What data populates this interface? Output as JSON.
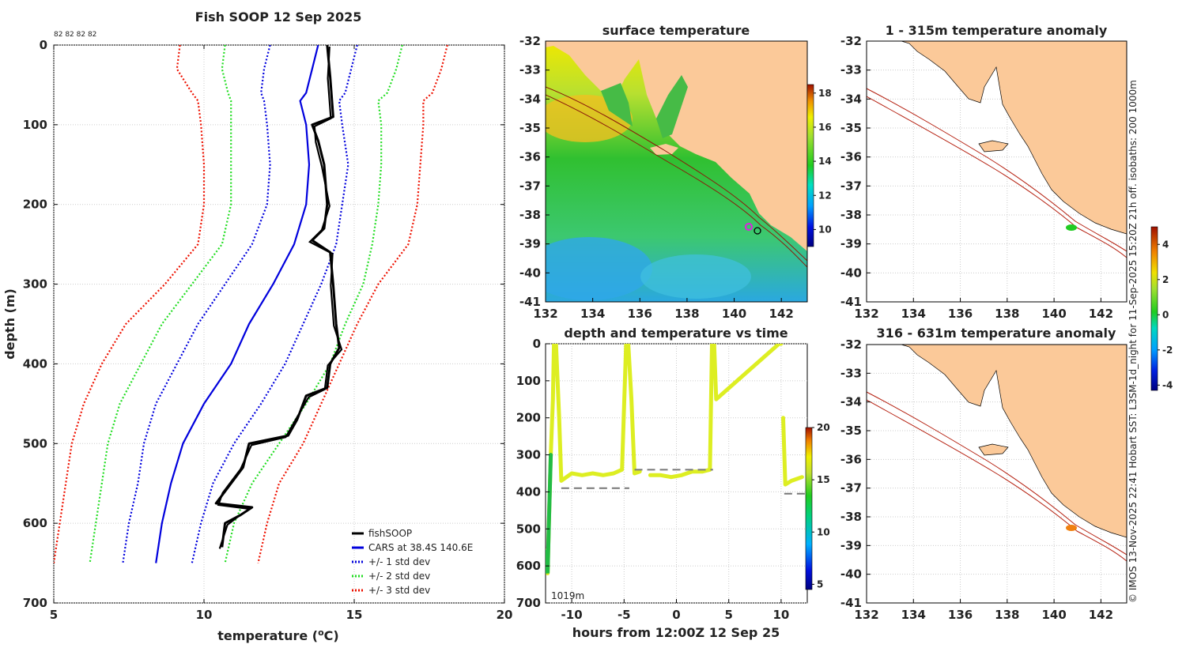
{
  "figure": {
    "credit": "© IMOS 13-Nov-2025 22:41 Hobart SST: L3SM-1d_night for 11-Sep-2025 15:20Z 21h off. isobaths: 200  1000m"
  },
  "profile": {
    "title": "Fish SOOP 12 Sep 2025",
    "counts_label": "82 82 82 82",
    "xlabel_main": "temperature (",
    "xlabel_sup": "o",
    "xlabel_tail": "C)",
    "ylabel": "depth (m)",
    "xticks": [
      5,
      10,
      15,
      20
    ],
    "yticks": [
      0,
      100,
      200,
      300,
      400,
      500,
      600,
      700
    ],
    "legend": [
      {
        "label": "fishSOOP",
        "color": "#000000",
        "style": "solid"
      },
      {
        "label": "CARS at 38.4S 140.6E",
        "color": "#0000dd",
        "style": "solid"
      },
      {
        "label": "+/- 1 std dev",
        "color": "#0000dd",
        "style": "dotted"
      },
      {
        "label": "+/- 2 std dev",
        "color": "#22dd22",
        "style": "dotted"
      },
      {
        "label": "+/- 3 std dev",
        "color": "#ee1100",
        "style": "dotted"
      }
    ]
  },
  "chart_data": [
    {
      "type": "line",
      "title": "Fish SOOP 12 Sep 2025",
      "xlabel": "temperature (oC)",
      "ylabel": "depth (m)",
      "xlim": [
        5,
        20
      ],
      "ylim": [
        700,
        0
      ],
      "series": [
        {
          "name": "CARS at 38.4S 140.6E",
          "color": "#0000dd",
          "style": "solid",
          "points": [
            [
              13.8,
              0
            ],
            [
              13.6,
              30
            ],
            [
              13.4,
              60
            ],
            [
              13.2,
              70
            ],
            [
              13.4,
              100
            ],
            [
              13.5,
              150
            ],
            [
              13.4,
              200
            ],
            [
              13.0,
              250
            ],
            [
              12.3,
              300
            ],
            [
              11.5,
              350
            ],
            [
              10.9,
              400
            ],
            [
              10.0,
              450
            ],
            [
              9.3,
              500
            ],
            [
              8.9,
              550
            ],
            [
              8.6,
              600
            ],
            [
              8.4,
              650
            ]
          ]
        },
        {
          "name": "-1 std dev",
          "color": "#0000dd",
          "style": "dotted",
          "points": [
            [
              12.2,
              0
            ],
            [
              12.0,
              30
            ],
            [
              11.9,
              60
            ],
            [
              12.0,
              70
            ],
            [
              12.1,
              100
            ],
            [
              12.2,
              150
            ],
            [
              12.1,
              200
            ],
            [
              11.6,
              250
            ],
            [
              10.7,
              300
            ],
            [
              9.8,
              350
            ],
            [
              9.1,
              400
            ],
            [
              8.4,
              450
            ],
            [
              8.0,
              500
            ],
            [
              7.8,
              550
            ],
            [
              7.5,
              600
            ],
            [
              7.3,
              650
            ]
          ]
        },
        {
          "name": "+1 std dev",
          "color": "#0000dd",
          "style": "dotted",
          "points": [
            [
              15.1,
              0
            ],
            [
              14.9,
              30
            ],
            [
              14.7,
              60
            ],
            [
              14.5,
              70
            ],
            [
              14.6,
              100
            ],
            [
              14.8,
              150
            ],
            [
              14.6,
              200
            ],
            [
              14.4,
              250
            ],
            [
              13.9,
              300
            ],
            [
              13.3,
              350
            ],
            [
              12.7,
              400
            ],
            [
              11.9,
              450
            ],
            [
              11.0,
              500
            ],
            [
              10.3,
              550
            ],
            [
              9.9,
              600
            ],
            [
              9.6,
              650
            ]
          ]
        },
        {
          "name": "-2 std dev",
          "color": "#22dd22",
          "style": "dotted",
          "points": [
            [
              10.7,
              0
            ],
            [
              10.6,
              30
            ],
            [
              10.8,
              60
            ],
            [
              10.9,
              70
            ],
            [
              10.9,
              100
            ],
            [
              10.9,
              150
            ],
            [
              10.9,
              200
            ],
            [
              10.6,
              250
            ],
            [
              9.6,
              300
            ],
            [
              8.6,
              350
            ],
            [
              7.9,
              400
            ],
            [
              7.2,
              450
            ],
            [
              6.8,
              500
            ],
            [
              6.6,
              550
            ],
            [
              6.4,
              600
            ],
            [
              6.2,
              650
            ]
          ]
        },
        {
          "name": "+2 std dev",
          "color": "#22dd22",
          "style": "dotted",
          "points": [
            [
              16.6,
              0
            ],
            [
              16.4,
              30
            ],
            [
              16.1,
              60
            ],
            [
              15.8,
              70
            ],
            [
              15.9,
              100
            ],
            [
              15.9,
              150
            ],
            [
              15.8,
              200
            ],
            [
              15.6,
              250
            ],
            [
              15.3,
              300
            ],
            [
              14.7,
              350
            ],
            [
              14.2,
              400
            ],
            [
              13.4,
              450
            ],
            [
              12.5,
              500
            ],
            [
              11.6,
              550
            ],
            [
              11.0,
              600
            ],
            [
              10.7,
              650
            ]
          ]
        },
        {
          "name": "-3 std dev",
          "color": "#ee1100",
          "style": "dotted",
          "points": [
            [
              9.2,
              0
            ],
            [
              9.1,
              30
            ],
            [
              9.6,
              60
            ],
            [
              9.8,
              70
            ],
            [
              9.9,
              100
            ],
            [
              10.0,
              150
            ],
            [
              10.0,
              200
            ],
            [
              9.8,
              250
            ],
            [
              8.7,
              300
            ],
            [
              7.4,
              350
            ],
            [
              6.6,
              400
            ],
            [
              6.0,
              450
            ],
            [
              5.6,
              500
            ],
            [
              5.4,
              550
            ],
            [
              5.2,
              600
            ],
            [
              5.0,
              650
            ]
          ]
        },
        {
          "name": "+3 std dev",
          "color": "#ee1100",
          "style": "dotted",
          "points": [
            [
              18.1,
              0
            ],
            [
              17.9,
              30
            ],
            [
              17.6,
              60
            ],
            [
              17.3,
              70
            ],
            [
              17.3,
              100
            ],
            [
              17.2,
              150
            ],
            [
              17.1,
              200
            ],
            [
              16.8,
              250
            ],
            [
              15.8,
              300
            ],
            [
              15.1,
              350
            ],
            [
              14.5,
              400
            ],
            [
              13.9,
              450
            ],
            [
              13.3,
              500
            ],
            [
              12.5,
              550
            ],
            [
              12.1,
              600
            ],
            [
              11.8,
              650
            ]
          ]
        },
        {
          "name": "fishSOOP",
          "color": "#000000",
          "style": "solid",
          "points": [
            [
              14.1,
              0
            ],
            [
              14.2,
              40
            ],
            [
              14.3,
              90
            ],
            [
              13.6,
              100
            ],
            [
              13.8,
              120
            ],
            [
              14.0,
              150
            ],
            [
              14.1,
              200
            ],
            [
              14.0,
              230
            ],
            [
              13.6,
              245
            ],
            [
              14.2,
              260
            ],
            [
              14.3,
              300
            ],
            [
              14.4,
              350
            ],
            [
              14.5,
              380
            ],
            [
              14.2,
              400
            ],
            [
              14.1,
              430
            ],
            [
              13.4,
              440
            ],
            [
              13.1,
              470
            ],
            [
              12.8,
              490
            ],
            [
              11.5,
              500
            ],
            [
              11.3,
              530
            ],
            [
              10.7,
              560
            ],
            [
              10.4,
              575
            ],
            [
              11.6,
              580
            ],
            [
              11.2,
              590
            ],
            [
              10.7,
              600
            ],
            [
              10.6,
              630
            ]
          ]
        }
      ]
    },
    {
      "type": "heatmap",
      "title": "surface temperature",
      "xticks": [
        132,
        134,
        136,
        138,
        140,
        142
      ],
      "yticks": [
        -32,
        -33,
        -34,
        -35,
        -36,
        -37,
        -38,
        -39,
        -40,
        -41
      ],
      "colorbar_ticks": [
        10,
        12,
        14,
        16,
        18
      ],
      "clim": [
        9,
        18.5
      ]
    },
    {
      "type": "line",
      "title": "depth and temperature vs time",
      "xlabel": "hours from 12:00Z 12 Sep 25",
      "annotation": "1019m",
      "xticks": [
        -10,
        -5,
        0,
        5,
        10
      ],
      "yticks": [
        0,
        100,
        200,
        300,
        400,
        500,
        600,
        700
      ],
      "xlim": [
        -12.5,
        12.5
      ],
      "ylim": [
        700,
        0
      ],
      "colorbar_ticks": [
        5,
        10,
        15,
        20
      ],
      "clim": [
        4.5,
        20
      ],
      "series": [
        {
          "name": "depth",
          "color": "#ddee22",
          "points": [
            [
              -12.9,
              540
            ],
            [
              -12.6,
              560
            ],
            [
              -12.3,
              620
            ],
            [
              -12.2,
              500
            ],
            [
              -12.0,
              300
            ],
            [
              -11.8,
              150
            ],
            [
              -11.7,
              0
            ],
            [
              -11.5,
              0
            ],
            [
              -11.2,
              200
            ],
            [
              -11.0,
              370
            ],
            [
              -10.5,
              360
            ],
            [
              -10.0,
              350
            ],
            [
              -9.0,
              355
            ],
            [
              -8.0,
              350
            ],
            [
              -7.0,
              355
            ],
            [
              -6.0,
              350
            ],
            [
              -5.2,
              340
            ],
            [
              -4.8,
              0
            ],
            [
              -4.6,
              0
            ],
            [
              -4.3,
              150
            ],
            [
              -4.0,
              350
            ],
            [
              -3.5,
              345
            ],
            [
              -2.5,
              355
            ],
            [
              -1.5,
              355
            ],
            [
              -0.5,
              360
            ],
            [
              0.5,
              355
            ],
            [
              1.5,
              345
            ],
            [
              2.5,
              345
            ],
            [
              3.2,
              340
            ],
            [
              3.4,
              0
            ],
            [
              3.6,
              0
            ],
            [
              3.8,
              150
            ],
            [
              9.8,
              0
            ],
            [
              10.0,
              0
            ],
            [
              10.2,
              200
            ],
            [
              10.4,
              380
            ],
            [
              11.0,
              370
            ],
            [
              11.5,
              365
            ],
            [
              12.0,
              360
            ]
          ]
        },
        {
          "name": "bottom",
          "color": "#777777",
          "style": "dashed",
          "points": [
            [
              -11.0,
              390
            ],
            [
              -4.5,
              390
            ],
            [
              -4.0,
              340
            ],
            [
              3.5,
              340
            ],
            [
              10.3,
              405
            ],
            [
              12.3,
              405
            ]
          ]
        }
      ]
    },
    {
      "type": "heatmap",
      "title": "1 - 315m temperature anomaly",
      "xticks": [
        132,
        134,
        136,
        138,
        140,
        142
      ],
      "yticks": [
        -32,
        -33,
        -34,
        -35,
        -36,
        -37,
        -38,
        -39,
        -40,
        -41
      ],
      "colorbar_ticks": [
        -4,
        -2,
        0,
        2,
        4
      ],
      "clim": [
        -4.3,
        5
      ],
      "points": [
        {
          "lon": 140.8,
          "lat": -38.4,
          "value": 0.2
        }
      ]
    },
    {
      "type": "heatmap",
      "title": "316 - 631m temperature anomaly",
      "xticks": [
        132,
        134,
        136,
        138,
        140,
        142
      ],
      "yticks": [
        -32,
        -33,
        -34,
        -35,
        -36,
        -37,
        -38,
        -39,
        -40,
        -41
      ],
      "points": [
        {
          "lon": 140.8,
          "lat": -38.4,
          "value": 2.6
        }
      ]
    }
  ]
}
